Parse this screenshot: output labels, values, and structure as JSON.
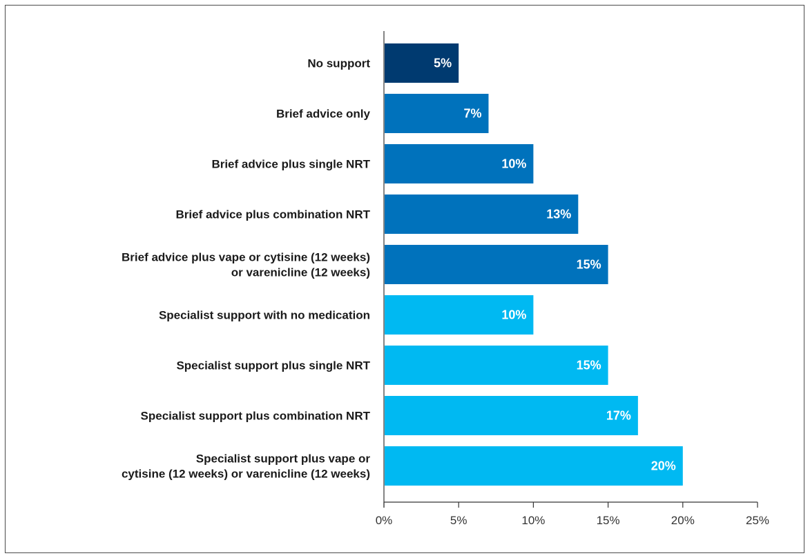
{
  "chart_data": {
    "type": "bar",
    "orientation": "horizontal",
    "title": "",
    "xlabel": "",
    "ylabel": "",
    "xlim": [
      0,
      25
    ],
    "x_ticks": [
      0,
      5,
      10,
      15,
      20,
      25
    ],
    "x_tick_labels": [
      "0%",
      "5%",
      "10%",
      "15%",
      "20%",
      "25%"
    ],
    "grid": false,
    "legend": "none",
    "categories": [
      [
        "No support"
      ],
      [
        "Brief advice only"
      ],
      [
        "Brief advice plus single NRT"
      ],
      [
        "Brief advice plus combination NRT"
      ],
      [
        "Brief advice plus vape or cytisine (12 weeks)",
        "or varenicline (12 weeks)"
      ],
      [
        "Specialist support with no medication"
      ],
      [
        "Specialist support plus single NRT"
      ],
      [
        "Specialist support plus combination NRT"
      ],
      [
        "Specialist support plus vape or",
        "cytisine (12 weeks) or varenicline (12 weeks)"
      ]
    ],
    "values": [
      5,
      7,
      10,
      13,
      15,
      10,
      15,
      17,
      20
    ],
    "value_labels": [
      "5%",
      "7%",
      "10%",
      "13%",
      "15%",
      "10%",
      "15%",
      "17%",
      "20%"
    ],
    "colors": [
      "#003a70",
      "#0072bc",
      "#0072bc",
      "#0072bc",
      "#0072bc",
      "#00b9f2",
      "#00b9f2",
      "#00b9f2",
      "#00b9f2"
    ]
  },
  "colors": {
    "axis": "#333333",
    "frame": "#4a4a4a"
  }
}
